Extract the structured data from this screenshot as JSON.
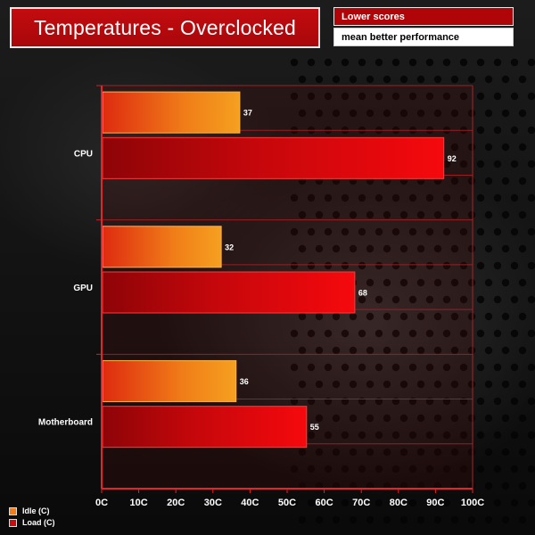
{
  "title": "Temperatures - Overclocked",
  "notes": [
    "Lower scores",
    "mean better performance"
  ],
  "colors": {
    "idle": "#f2a41e",
    "load": "#ee0d10",
    "title_bg": "#b00508"
  },
  "chart_data": {
    "type": "bar",
    "orientation": "horizontal",
    "categories": [
      "CPU",
      "GPU",
      "Motherboard"
    ],
    "series": [
      {
        "name": "Idle (C)",
        "values": [
          37,
          32,
          36
        ]
      },
      {
        "name": "Load (C)",
        "values": [
          92,
          68,
          55
        ]
      }
    ],
    "xlim": [
      0,
      100
    ],
    "xticks": [
      "0C",
      "10C",
      "20C",
      "30C",
      "40C",
      "50C",
      "60C",
      "70C",
      "80C",
      "90C",
      "100C"
    ],
    "grid": true,
    "legend_position": "bottom-left"
  }
}
